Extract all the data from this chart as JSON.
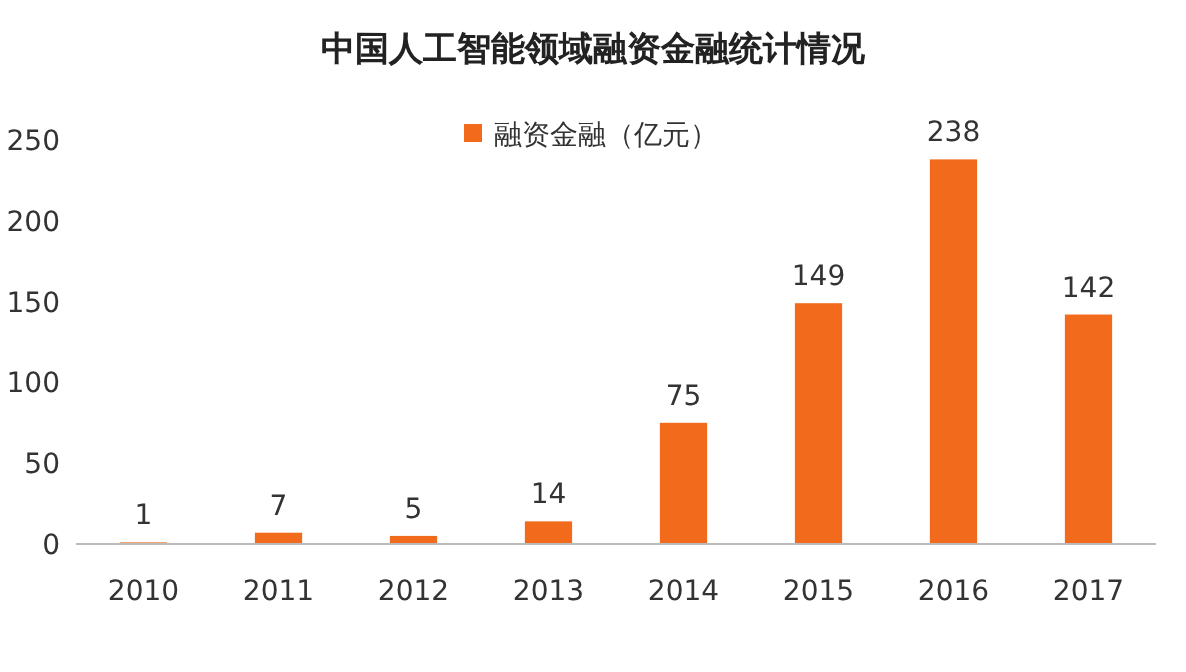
{
  "chart_data": {
    "type": "bar",
    "title": "中国人工智能领域融资金融统计情况",
    "categories": [
      "2010",
      "2011",
      "2012",
      "2013",
      "2014",
      "2015",
      "2016",
      "2017"
    ],
    "series": [
      {
        "name": "融资金融（亿元）",
        "color": "#f26a1b",
        "values": [
          1,
          7,
          5,
          14,
          75,
          149,
          238,
          142
        ]
      }
    ],
    "ylim": [
      0,
      250
    ],
    "yticks": [
      0,
      50,
      100,
      150,
      200,
      250
    ],
    "data_labels": true,
    "legend": "top right",
    "grid": false
  }
}
